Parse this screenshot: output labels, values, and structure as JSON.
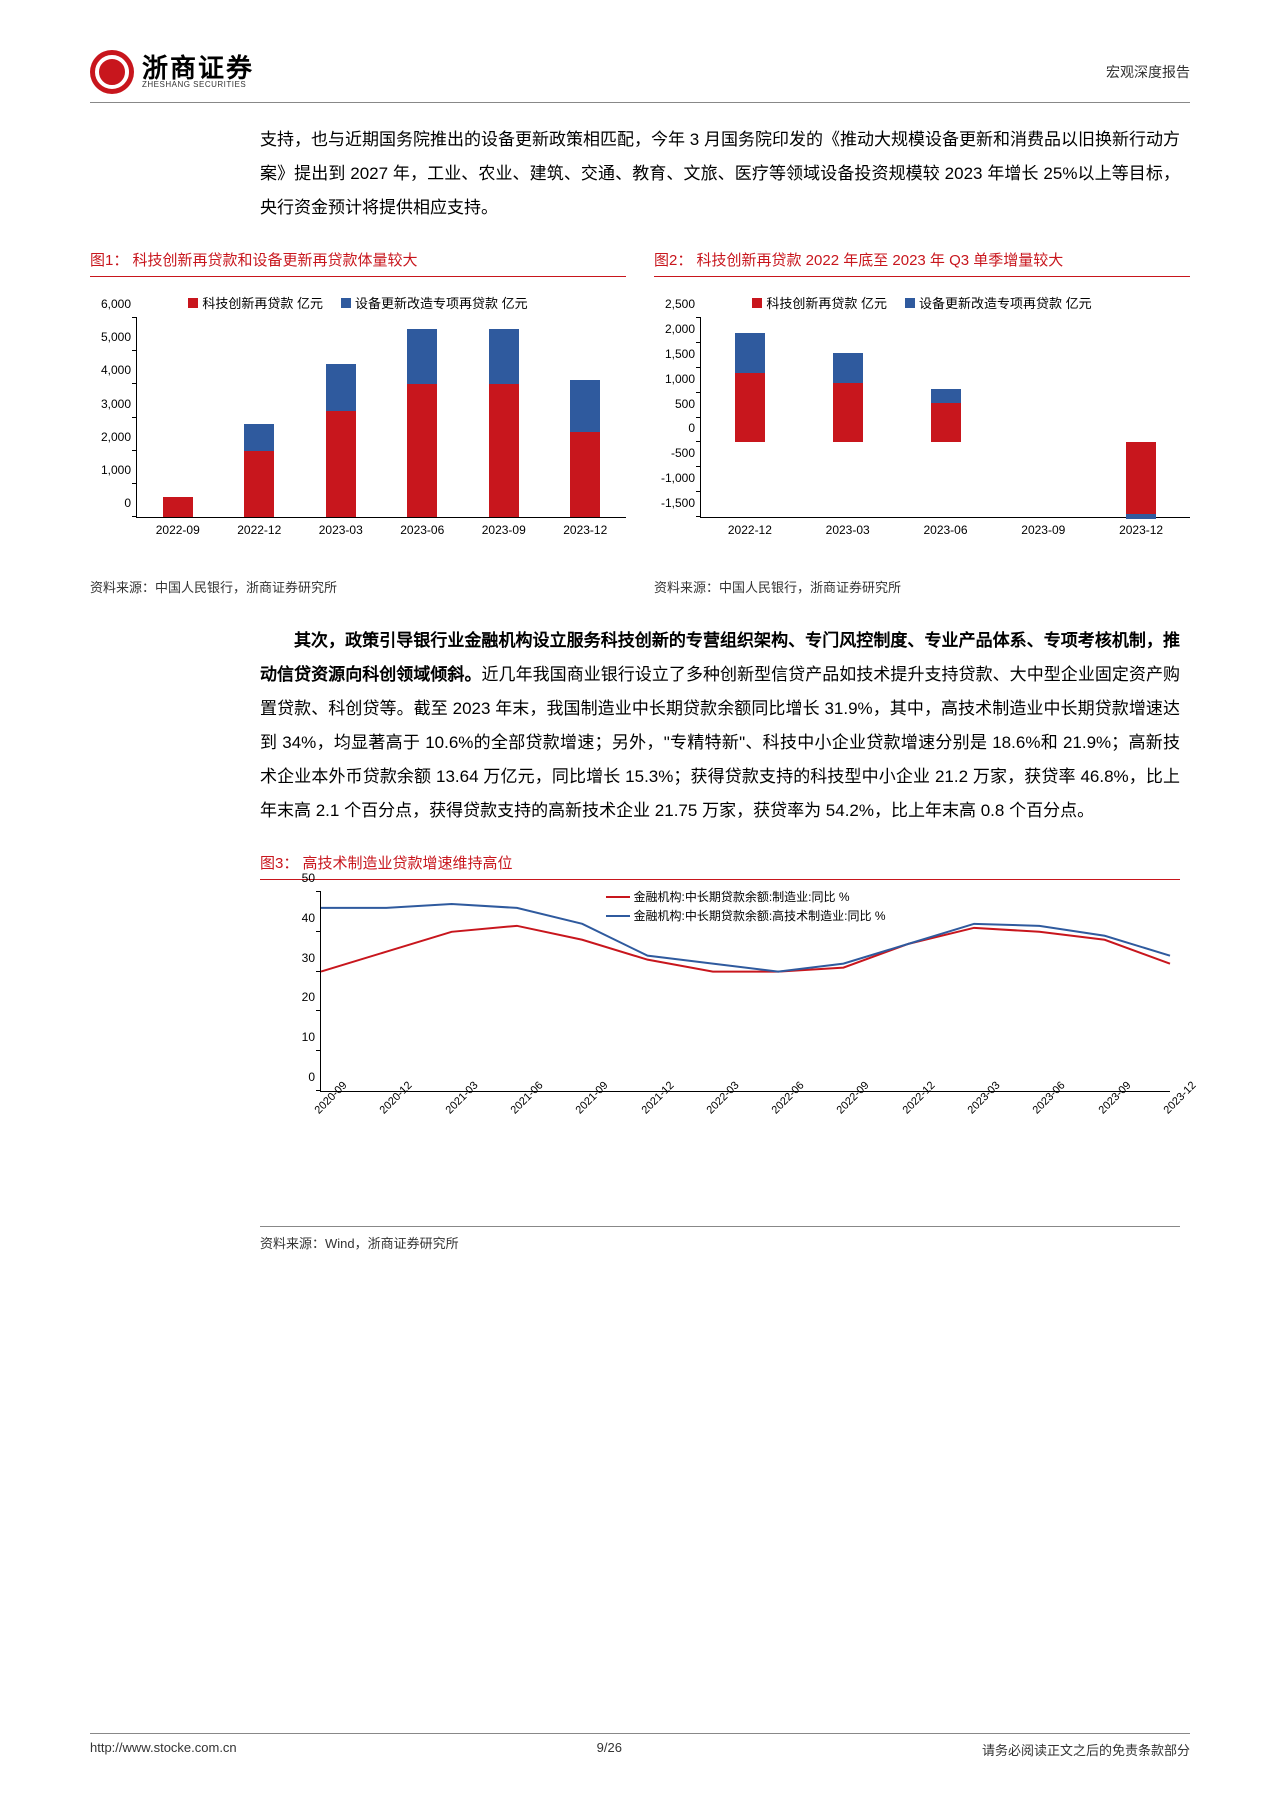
{
  "header": {
    "logo_cn": "浙商证券",
    "logo_en": "ZHESHANG SECURITIES",
    "doc_type": "宏观深度报告"
  },
  "paragraph1": "支持，也与近期国务院推出的设备更新政策相匹配，今年 3 月国务院印发的《推动大规模设备更新和消费品以旧换新行动方案》提出到 2027 年，工业、农业、建筑、交通、教育、文旅、医疗等领域设备投资规模较 2023 年增长 25%以上等目标，央行资金预计将提供相应支持。",
  "chart1": {
    "title": "图1：  科技创新再贷款和设备更新再贷款体量较大",
    "type": "stacked-bar",
    "legend": [
      {
        "label": "科技创新再贷款 亿元",
        "color": "#c8161d"
      },
      {
        "label": "设备更新改造专项再贷款 亿元",
        "color": "#2f5a9e"
      }
    ],
    "categories": [
      "2022-09",
      "2022-12",
      "2023-03",
      "2023-06",
      "2023-09",
      "2023-12"
    ],
    "series": {
      "tech": [
        600,
        2000,
        3200,
        4000,
        4000,
        2556
      ],
      "equip": [
        0,
        800,
        1400,
        1672,
        1672,
        1567
      ]
    },
    "ymin": 0,
    "ymax": 6000,
    "ystep": 1000,
    "background": "#ffffff",
    "axis_fontsize": 12
  },
  "chart2": {
    "title": "图2：  科技创新再贷款 2022 年底至 2023 年 Q3 单季增量较大",
    "type": "stacked-bar",
    "legend": [
      {
        "label": "科技创新再贷款 亿元",
        "color": "#c8161d"
      },
      {
        "label": "设备更新改造专项再贷款 亿元",
        "color": "#2f5a9e"
      }
    ],
    "categories": [
      "2022-12",
      "2023-03",
      "2023-06",
      "2023-09",
      "2023-12"
    ],
    "series": {
      "tech": [
        1400,
        1200,
        800,
        0,
        -1444
      ],
      "equip": [
        800,
        600,
        272,
        0,
        -105
      ]
    },
    "ymin": -1500,
    "ymax": 2500,
    "ystep": 500,
    "background": "#ffffff",
    "axis_fontsize": 12
  },
  "chart_source": "资料来源：中国人民银行，浙商证券研究所",
  "paragraph2_bold": "其次，政策引导银行业金融机构设立服务科技创新的专营组织架构、专门风控制度、专业产品体系、专项考核机制，推动信贷资源向科创领域倾斜。",
  "paragraph2_rest": "近几年我国商业银行设立了多种创新型信贷产品如技术提升支持贷款、大中型企业固定资产购置贷款、科创贷等。截至 2023 年末，我国制造业中长期贷款余额同比增长 31.9%，其中，高技术制造业中长期贷款增速达到 34%，均显著高于 10.6%的全部贷款增速；另外，\"专精特新\"、科技中小企业贷款增速分别是 18.6%和 21.9%；高新技术企业本外币贷款余额 13.64 万亿元，同比增长 15.3%；获得贷款支持的科技型中小企业 21.2 万家，获贷率 46.8%，比上年末高 2.1 个百分点，获得贷款支持的高新技术企业 21.75 万家，获贷率为 54.2%，比上年末高 0.8 个百分点。",
  "chart3": {
    "title": "图3：  高技术制造业贷款增速维持高位",
    "type": "line",
    "legend": [
      {
        "label": "金融机构:中长期贷款余额:制造业:同比 %",
        "color": "#c8161d"
      },
      {
        "label": "金融机构:中长期贷款余额:高技术制造业:同比 %",
        "color": "#2f5a9e"
      }
    ],
    "categories": [
      "2020-09",
      "2020-12",
      "2021-03",
      "2021-06",
      "2021-09",
      "2021-12",
      "2022-03",
      "2022-06",
      "2022-09",
      "2022-12",
      "2023-03",
      "2023-06",
      "2023-09",
      "2023-12"
    ],
    "series": {
      "mfg": [
        30,
        35,
        40,
        41.5,
        38,
        33,
        30,
        30,
        31,
        37,
        41,
        40,
        38,
        32
      ],
      "hitech": [
        46,
        46,
        47,
        46,
        42,
        34,
        32,
        30,
        32,
        37,
        42,
        41.5,
        39,
        34
      ]
    },
    "ymin": 0,
    "ymax": 50,
    "ystep": 10,
    "line_width": 2,
    "background": "#ffffff",
    "axis_fontsize": 12
  },
  "chart3_source": "资料来源：Wind，浙商证券研究所",
  "footer": {
    "url": "http://www.stocke.com.cn",
    "page": "9/26",
    "disclaimer": "请务必阅读正文之后的免责条款部分"
  }
}
